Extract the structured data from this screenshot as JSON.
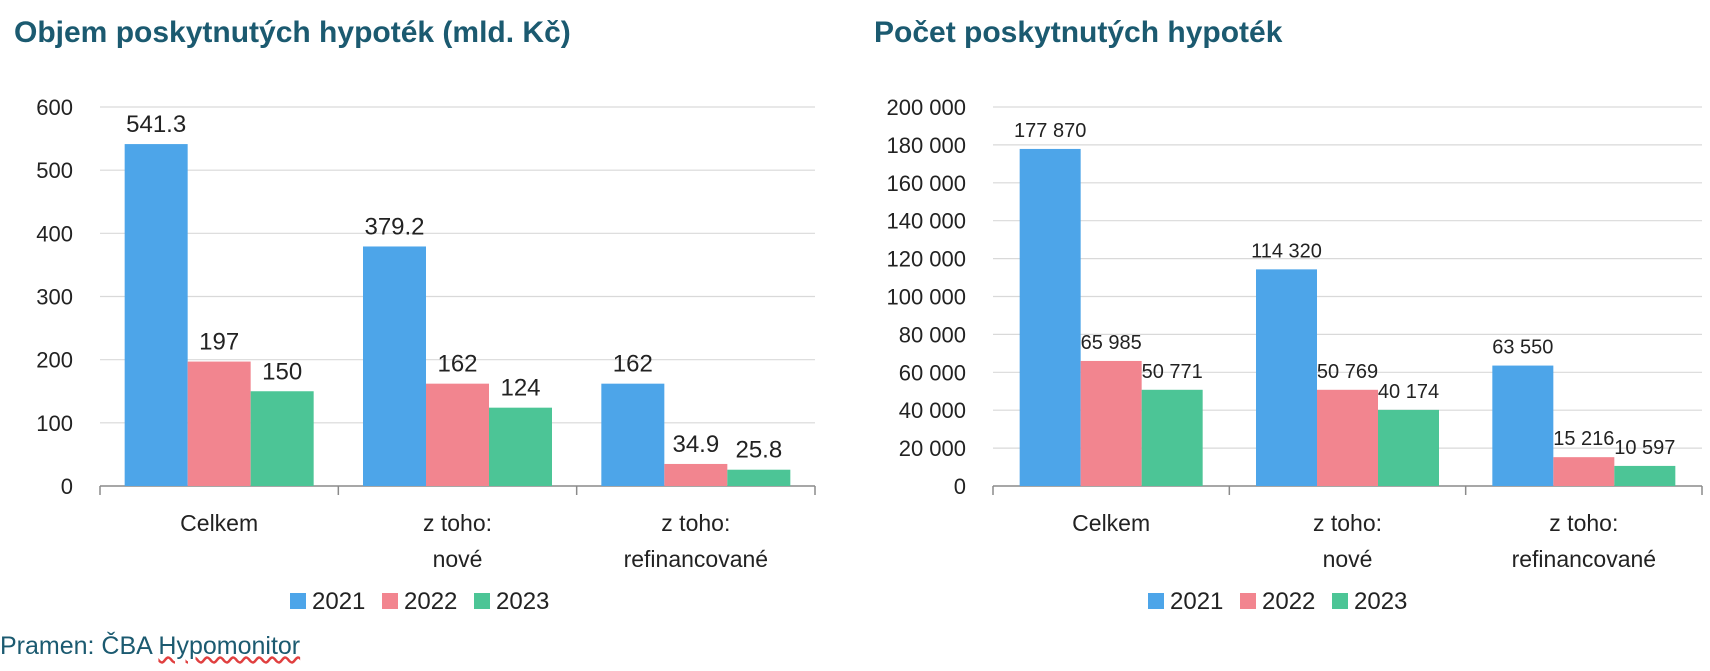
{
  "source": {
    "prefix": "Pramen: ČBA ",
    "link": "Hypomonitor"
  },
  "colors": {
    "2021": "#4da5e9",
    "2022": "#f2858f",
    "2023": "#4cc596",
    "grid": "#d9d9d9",
    "axis": "#8a8a8a",
    "title": "#1b5a70"
  },
  "chart_data": [
    {
      "type": "bar",
      "title": "Objem poskytnutých hypoték (mld. Kč)",
      "categories": [
        [
          "Celkem"
        ],
        [
          "z toho:",
          "nové"
        ],
        [
          "z toho:",
          "refinancované"
        ]
      ],
      "series": [
        {
          "name": "2021",
          "values": [
            541.3,
            379.2,
            162
          ],
          "labels": [
            "541.3",
            "379.2",
            "162"
          ]
        },
        {
          "name": "2022",
          "values": [
            197,
            162,
            34.9
          ],
          "labels": [
            "197",
            "162",
            "34.9"
          ]
        },
        {
          "name": "2023",
          "values": [
            150,
            124,
            25.8
          ],
          "labels": [
            "150",
            "124",
            "25.8"
          ]
        }
      ],
      "ylim": [
        0,
        600
      ],
      "yticks": [
        0,
        100,
        200,
        300,
        400,
        500,
        600
      ],
      "ytick_labels": [
        "0",
        "100",
        "200",
        "300",
        "400",
        "500",
        "600"
      ],
      "grid": true,
      "legend": "bottom"
    },
    {
      "type": "bar",
      "title": "Počet poskytnutých hypoték",
      "categories": [
        [
          "Celkem"
        ],
        [
          "z toho:",
          "nové"
        ],
        [
          "z toho:",
          "refinancované"
        ]
      ],
      "series": [
        {
          "name": "2021",
          "values": [
            177870,
            114320,
            63550
          ],
          "labels": [
            "177 870",
            "114 320",
            "63 550"
          ]
        },
        {
          "name": "2022",
          "values": [
            65985,
            50769,
            15216
          ],
          "labels": [
            "65 985",
            "50 769",
            "15 216"
          ]
        },
        {
          "name": "2023",
          "values": [
            50771,
            40174,
            10597
          ],
          "labels": [
            "50 771",
            "40 174",
            "10 597"
          ]
        }
      ],
      "ylim": [
        0,
        200000
      ],
      "yticks": [
        0,
        20000,
        40000,
        60000,
        80000,
        100000,
        120000,
        140000,
        160000,
        180000,
        200000
      ],
      "ytick_labels": [
        "0",
        "20 000",
        "40 000",
        "60 000",
        "80 000",
        "100 000",
        "120 000",
        "140 000",
        "160 000",
        "180 000",
        "200 000"
      ],
      "grid": true,
      "legend": "bottom"
    }
  ]
}
